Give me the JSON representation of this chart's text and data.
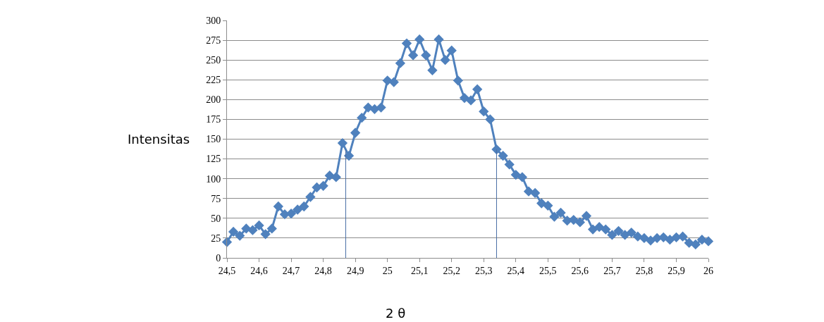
{
  "chart_data": {
    "type": "line",
    "xlabel": "2 θ",
    "ylabel": "Intensitas",
    "xlim": [
      24.5,
      26
    ],
    "ylim": [
      0,
      300
    ],
    "xticks": [
      {
        "value": 24.5,
        "label": "24,5"
      },
      {
        "value": 24.6,
        "label": "24,6"
      },
      {
        "value": 24.7,
        "label": "24,7"
      },
      {
        "value": 24.8,
        "label": "24,8"
      },
      {
        "value": 24.9,
        "label": "24,9"
      },
      {
        "value": 25,
        "label": "25"
      },
      {
        "value": 25.1,
        "label": "25,1"
      },
      {
        "value": 25.2,
        "label": "25,2"
      },
      {
        "value": 25.3,
        "label": "25,3"
      },
      {
        "value": 25.4,
        "label": "25,4"
      },
      {
        "value": 25.5,
        "label": "25,5"
      },
      {
        "value": 25.6,
        "label": "25,6"
      },
      {
        "value": 25.7,
        "label": "25,7"
      },
      {
        "value": 25.8,
        "label": "25,8"
      },
      {
        "value": 25.9,
        "label": "25,9"
      },
      {
        "value": 26,
        "label": "26"
      }
    ],
    "yticks": [
      0,
      25,
      50,
      75,
      100,
      125,
      150,
      175,
      200,
      225,
      250,
      275,
      300
    ],
    "grid": "y",
    "marker": "diamond",
    "line_style": "solid",
    "series": [
      {
        "color": "#4f81bd",
        "x": [
          24.5,
          24.52,
          24.54,
          24.56,
          24.58,
          24.6,
          24.62,
          24.64,
          24.66,
          24.68,
          24.7,
          24.72,
          24.74,
          24.76,
          24.78,
          24.8,
          24.82,
          24.84,
          24.86,
          24.88,
          24.9,
          24.92,
          24.94,
          24.96,
          24.98,
          25.0,
          25.02,
          25.04,
          25.06,
          25.08,
          25.1,
          25.12,
          25.14,
          25.16,
          25.18,
          25.2,
          25.22,
          25.24,
          25.26,
          25.28,
          25.3,
          25.32,
          25.34,
          25.36,
          25.38,
          25.4,
          25.42,
          25.44,
          25.46,
          25.48,
          25.5,
          25.52,
          25.54,
          25.56,
          25.58,
          25.6,
          25.62,
          25.64,
          25.66,
          25.68,
          25.7,
          25.72,
          25.74,
          25.76,
          25.78,
          25.8,
          25.82,
          25.84,
          25.86,
          25.88,
          25.9,
          25.92,
          25.94,
          25.96,
          25.98,
          26.0
        ],
        "values": [
          20,
          33,
          28,
          37,
          35,
          41,
          30,
          37,
          65,
          55,
          56,
          61,
          65,
          77,
          89,
          91,
          104,
          102,
          145,
          129,
          158,
          177,
          190,
          188,
          190,
          224,
          222,
          246,
          271,
          256,
          276,
          256,
          237,
          276,
          250,
          262,
          224,
          202,
          199,
          213,
          185,
          175,
          137,
          129,
          118,
          105,
          102,
          84,
          82,
          69,
          66,
          52,
          57,
          47,
          48,
          45,
          53,
          36,
          39,
          36,
          29,
          34,
          29,
          32,
          27,
          25,
          22,
          25,
          26,
          23,
          26,
          27,
          19,
          17,
          23,
          21
        ]
      },
      {
        "color": "#4a6fa5",
        "marker": "none",
        "x": [
          24.87,
          24.87
        ],
        "values": [
          0,
          137
        ]
      },
      {
        "color": "#4a6fa5",
        "marker": "none",
        "x": [
          25.34,
          25.34
        ],
        "values": [
          0,
          137
        ]
      }
    ]
  }
}
